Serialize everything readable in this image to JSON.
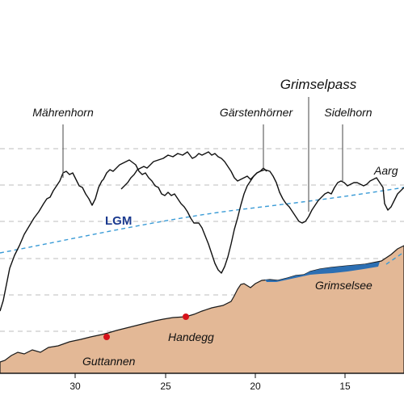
{
  "colors": {
    "bedrock": "#e3b896",
    "bedrock_edge": "#1a1a1a",
    "lake": "#2c6fb3",
    "lgm_line": "#3a9bd6",
    "lgm_text": "#1b3a8f",
    "site_dot": "#d6121a",
    "grid": "#bdbdbd"
  },
  "peaks": {
    "mahrenhorn": "Mährenhorn",
    "garstenhorner": "Gärstenhörner",
    "grimselpass": "Grimselpass",
    "sidelhorn": "Sidelhorn",
    "aargletscher": "Aarg"
  },
  "valley": {
    "grimselsee": "Grimselsee",
    "handegg": "Handegg",
    "guttannen": "Guttannen"
  },
  "lgm": {
    "label": "LGM"
  },
  "x_axis": {
    "ticks": [
      {
        "value": 30,
        "label": "30"
      },
      {
        "value": 25,
        "label": "25"
      },
      {
        "value": 20,
        "label": "20"
      },
      {
        "value": 15,
        "label": "15"
      }
    ]
  }
}
